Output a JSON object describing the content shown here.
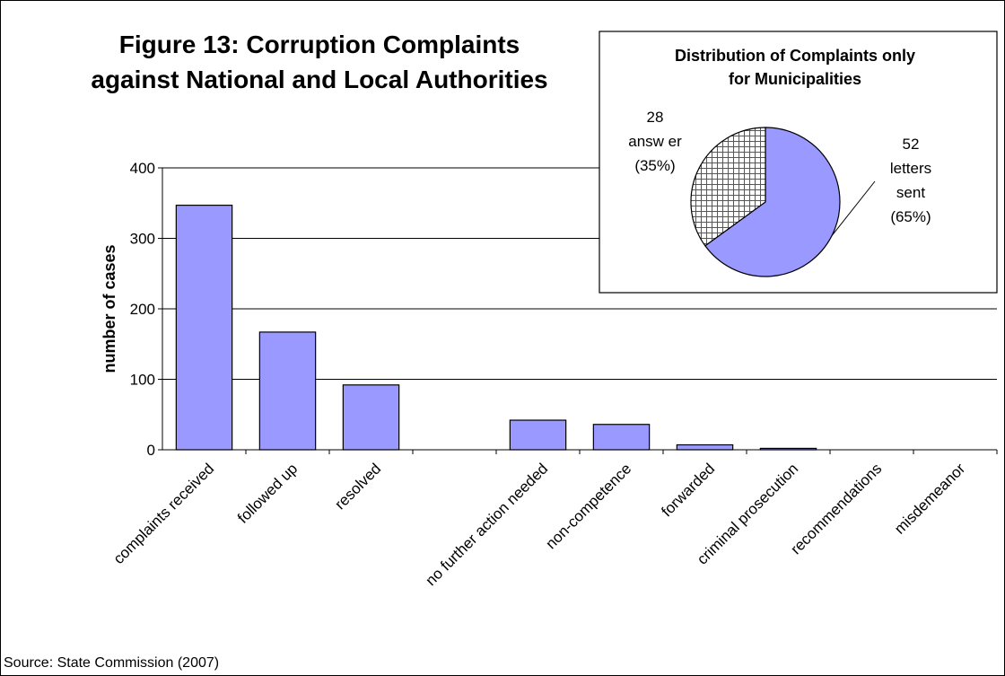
{
  "chart_data": [
    {
      "type": "bar",
      "title_lines": [
        "Figure 13: Corruption Complaints",
        "against National and Local Authorities"
      ],
      "ylabel": "number of cases",
      "xlabel": "",
      "ylim": [
        0,
        400
      ],
      "yticks": [
        0,
        100,
        200,
        300,
        400
      ],
      "grid": true,
      "bar_color": "#9999ff",
      "categories": [
        "complaints received",
        "followed up",
        "resolved",
        "",
        "no further action needed",
        "non-competence",
        "forwarded",
        "criminal prosecution",
        "recommendations",
        "misdemeanor"
      ],
      "values": [
        347,
        167,
        92,
        0,
        42,
        36,
        7,
        2,
        0,
        0
      ]
    },
    {
      "type": "pie",
      "title_lines": [
        "Distribution of Complaints only",
        "for Municipalities"
      ],
      "slices": [
        {
          "value": 52,
          "label_lines": [
            "52",
            "letters",
            "sent",
            "(65%)"
          ],
          "color": "#9999ff"
        },
        {
          "value": 28,
          "label_lines": [
            "28",
            "answ er",
            "(35%)"
          ],
          "color": "#ffffff",
          "hatch_color": "#993366"
        }
      ]
    }
  ],
  "source": "Source: State Commission (2007)"
}
